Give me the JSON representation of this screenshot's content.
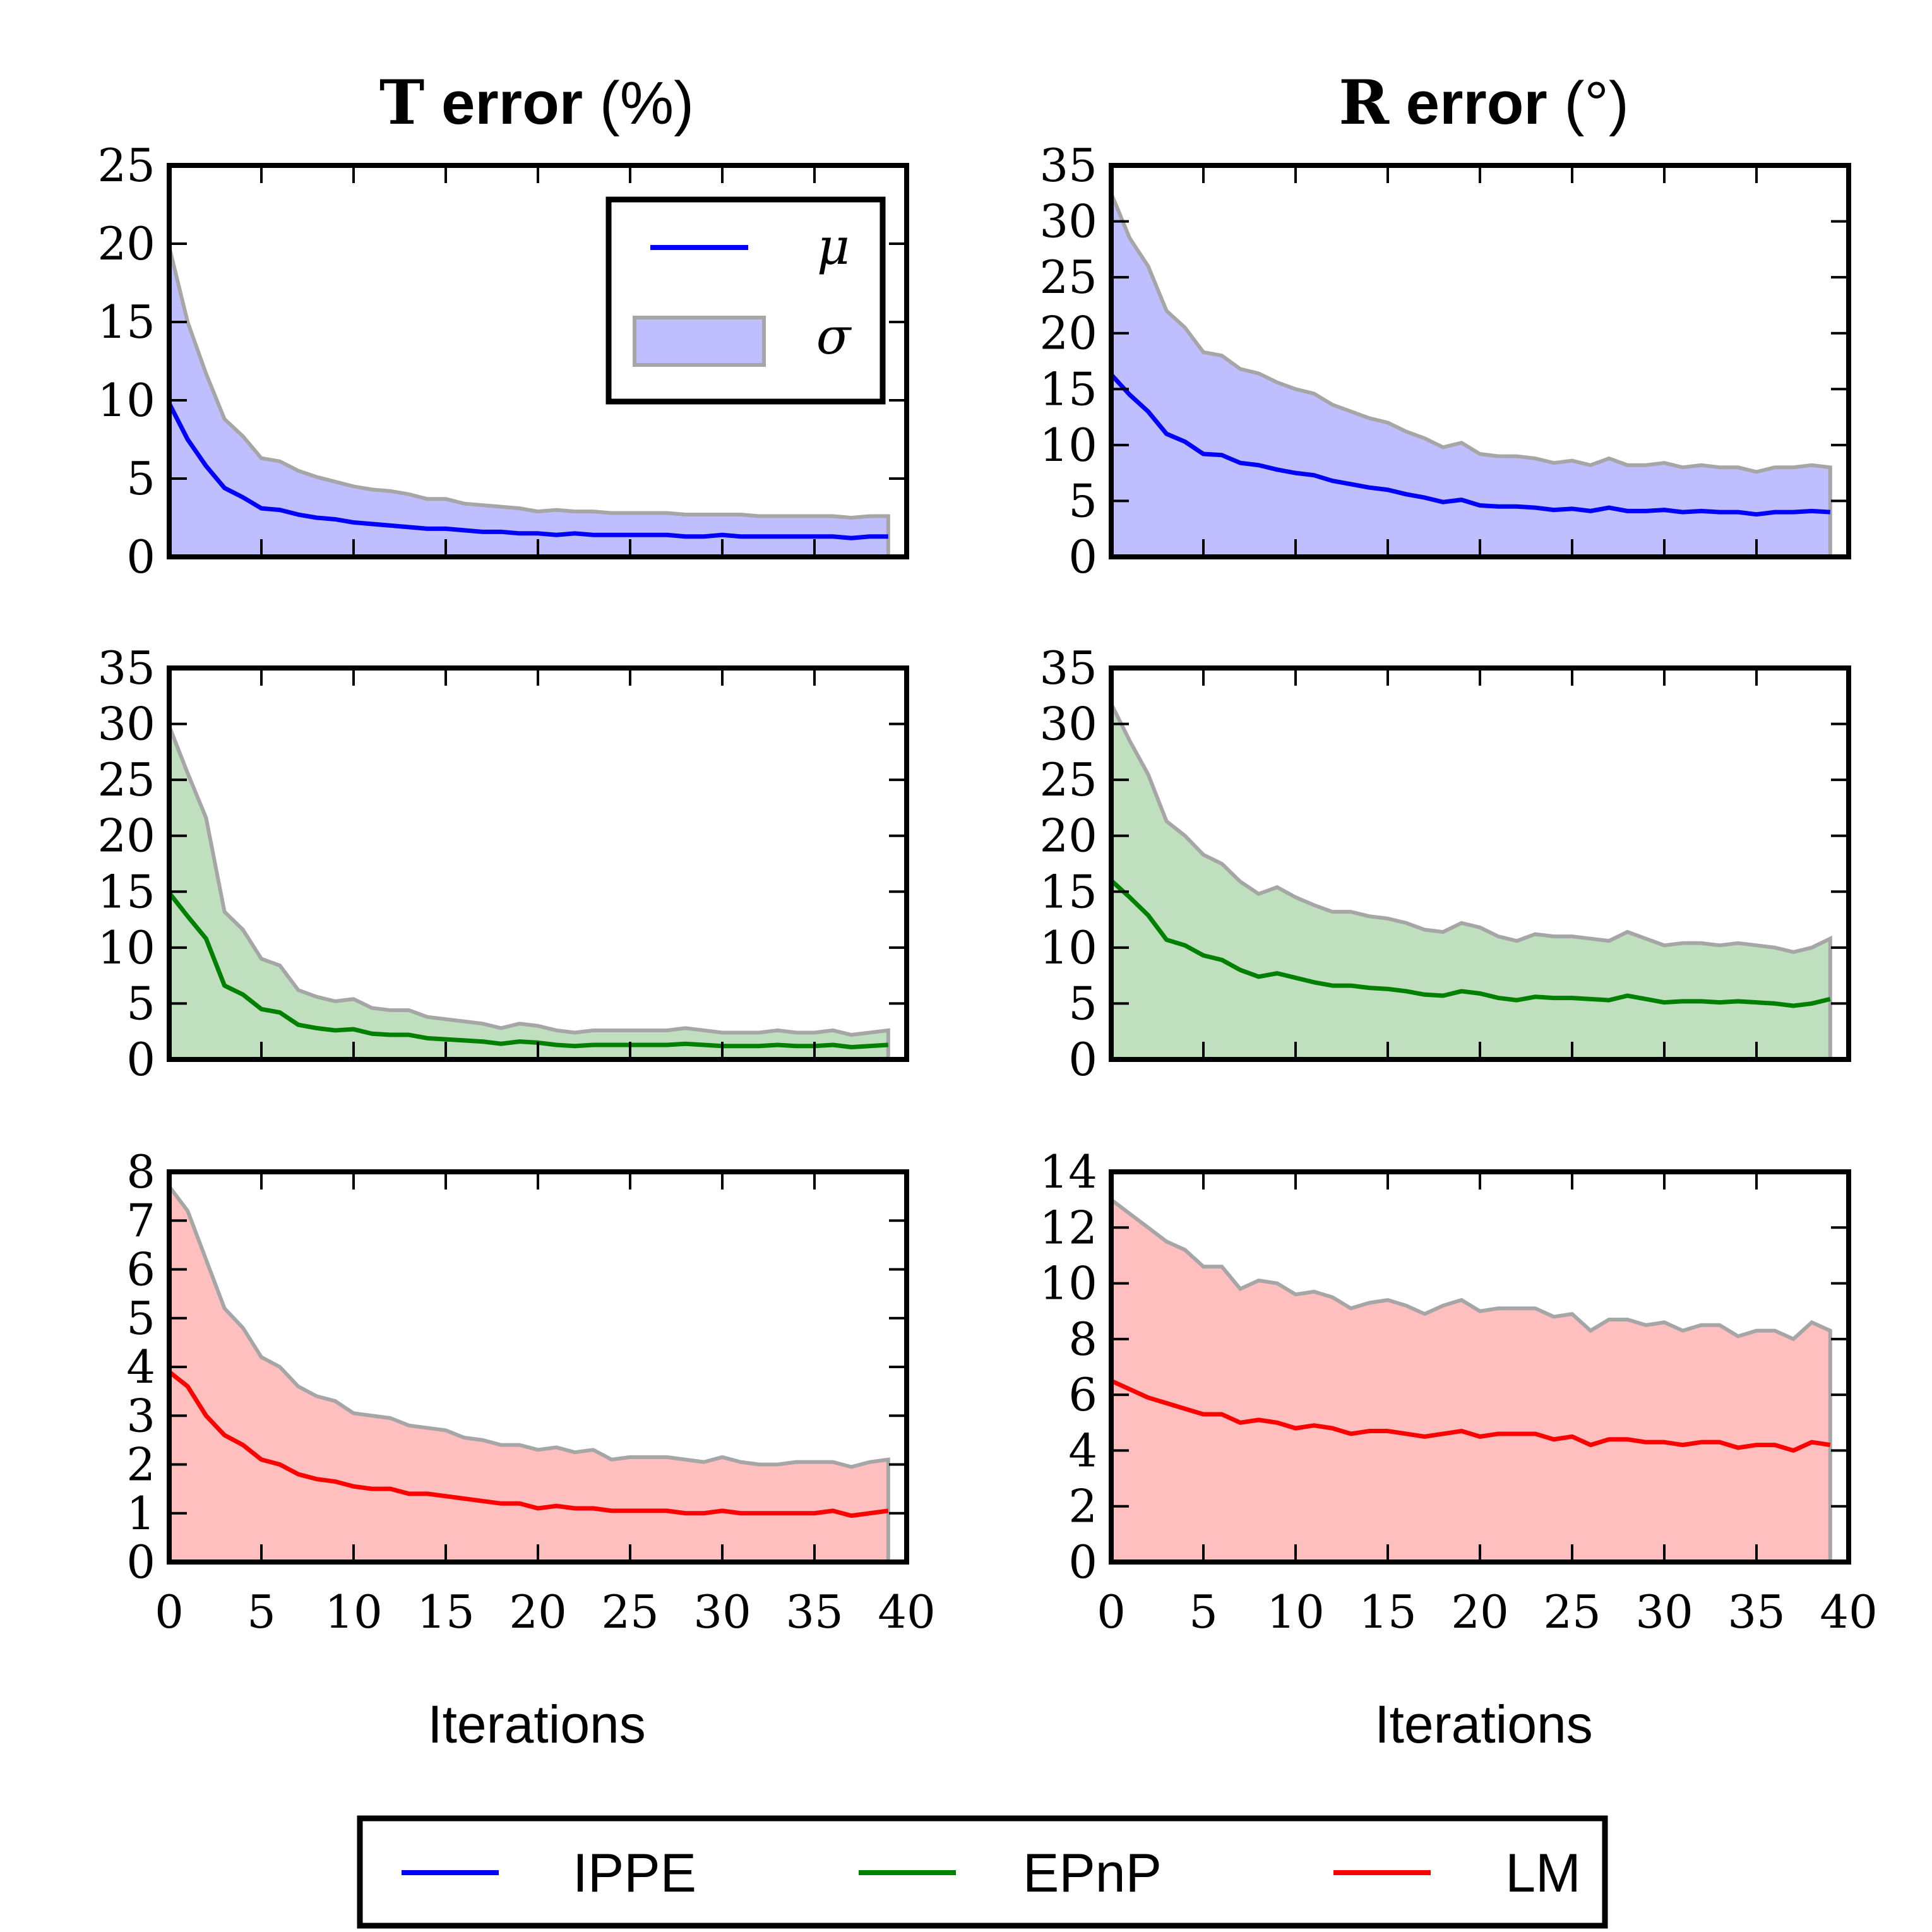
{
  "titles": {
    "t_error": {
      "symbol": "T",
      "word": " error",
      "unit": " (%)"
    },
    "r_error": {
      "symbol": "R",
      "word": " error",
      "unit": " (°)"
    }
  },
  "xlabel": "Iterations",
  "inner_legend": {
    "mean": "μ",
    "std": "σ"
  },
  "legend": [
    {
      "name": "IPPE",
      "color": "#0000ff"
    },
    {
      "name": "EPnP",
      "color": "#008000"
    },
    {
      "name": "LM",
      "color": "#ff0000"
    }
  ],
  "colors": {
    "IPPE": "#0000ff",
    "IPPE_fill": "#bfbfff",
    "EPnP": "#008000",
    "EPnP_fill": "#bfdfbf",
    "LM": "#ff0000",
    "LM_fill": "#ffbfbf",
    "band_edge": "#a6a6a6"
  },
  "chart_data": [
    {
      "type": "area",
      "panel": "IPPE T error",
      "method": "IPPE",
      "x": [
        0,
        1,
        2,
        3,
        4,
        5,
        6,
        7,
        8,
        9,
        10,
        11,
        12,
        13,
        14,
        15,
        16,
        17,
        18,
        19,
        20,
        21,
        22,
        23,
        24,
        25,
        26,
        27,
        28,
        29,
        30,
        31,
        32,
        33,
        34,
        35,
        36,
        37,
        38,
        39
      ],
      "mean": [
        9.8,
        7.5,
        5.8,
        4.4,
        3.8,
        3.1,
        3.0,
        2.7,
        2.5,
        2.4,
        2.2,
        2.1,
        2.0,
        1.9,
        1.8,
        1.8,
        1.7,
        1.6,
        1.6,
        1.5,
        1.5,
        1.4,
        1.5,
        1.4,
        1.4,
        1.4,
        1.4,
        1.4,
        1.3,
        1.3,
        1.4,
        1.3,
        1.3,
        1.3,
        1.3,
        1.3,
        1.3,
        1.2,
        1.3,
        1.3
      ],
      "upper": [
        19.8,
        15.0,
        11.7,
        8.8,
        7.7,
        6.3,
        6.1,
        5.5,
        5.1,
        4.8,
        4.5,
        4.3,
        4.2,
        4.0,
        3.7,
        3.7,
        3.4,
        3.3,
        3.2,
        3.1,
        2.9,
        3.0,
        2.9,
        2.9,
        2.8,
        2.8,
        2.8,
        2.8,
        2.7,
        2.7,
        2.7,
        2.7,
        2.6,
        2.6,
        2.6,
        2.6,
        2.6,
        2.5,
        2.6,
        2.6
      ],
      "xlim": [
        0,
        40
      ],
      "ylim": [
        0,
        25
      ],
      "yticks": [
        0,
        5,
        10,
        15,
        20,
        25
      ],
      "xticks": [
        0,
        5,
        10,
        15,
        20,
        25,
        30,
        35,
        40
      ],
      "show_xticklabels": false
    },
    {
      "type": "area",
      "panel": "IPPE R error",
      "method": "IPPE",
      "x": [
        0,
        1,
        2,
        3,
        4,
        5,
        6,
        7,
        8,
        9,
        10,
        11,
        12,
        13,
        14,
        15,
        16,
        17,
        18,
        19,
        20,
        21,
        22,
        23,
        24,
        25,
        26,
        27,
        28,
        29,
        30,
        31,
        32,
        33,
        34,
        35,
        36,
        37,
        38,
        39
      ],
      "mean": [
        16.3,
        14.5,
        13.0,
        11.0,
        10.3,
        9.2,
        9.1,
        8.4,
        8.2,
        7.8,
        7.5,
        7.3,
        6.8,
        6.5,
        6.2,
        6.0,
        5.6,
        5.3,
        4.9,
        5.1,
        4.6,
        4.5,
        4.5,
        4.4,
        4.2,
        4.3,
        4.1,
        4.4,
        4.1,
        4.1,
        4.2,
        4.0,
        4.1,
        4.0,
        4.0,
        3.8,
        4.0,
        4.0,
        4.1,
        4.0
      ],
      "upper": [
        32.5,
        28.5,
        26.0,
        22.0,
        20.5,
        18.3,
        18.0,
        16.8,
        16.4,
        15.6,
        15.0,
        14.6,
        13.6,
        13.0,
        12.4,
        12.0,
        11.2,
        10.6,
        9.8,
        10.2,
        9.2,
        9.0,
        9.0,
        8.8,
        8.4,
        8.6,
        8.2,
        8.8,
        8.2,
        8.2,
        8.4,
        8.0,
        8.2,
        8.0,
        8.0,
        7.6,
        8.0,
        8.0,
        8.2,
        8.0
      ],
      "xlim": [
        0,
        40
      ],
      "ylim": [
        0,
        35
      ],
      "yticks": [
        0,
        5,
        10,
        15,
        20,
        25,
        30,
        35
      ],
      "xticks": [
        0,
        5,
        10,
        15,
        20,
        25,
        30,
        35,
        40
      ],
      "show_xticklabels": false
    },
    {
      "type": "area",
      "panel": "EPnP T error",
      "method": "EPnP",
      "x": [
        0,
        1,
        2,
        3,
        4,
        5,
        6,
        7,
        8,
        9,
        10,
        11,
        12,
        13,
        14,
        15,
        16,
        17,
        18,
        19,
        20,
        21,
        22,
        23,
        24,
        25,
        26,
        27,
        28,
        29,
        30,
        31,
        32,
        33,
        34,
        35,
        36,
        37,
        38,
        39
      ],
      "mean": [
        14.9,
        12.8,
        10.8,
        6.6,
        5.8,
        4.5,
        4.2,
        3.1,
        2.8,
        2.6,
        2.7,
        2.3,
        2.2,
        2.2,
        1.9,
        1.8,
        1.7,
        1.6,
        1.4,
        1.6,
        1.5,
        1.3,
        1.2,
        1.3,
        1.3,
        1.3,
        1.3,
        1.3,
        1.4,
        1.3,
        1.2,
        1.2,
        1.2,
        1.3,
        1.2,
        1.2,
        1.3,
        1.1,
        1.2,
        1.3
      ],
      "upper": [
        29.8,
        25.6,
        21.6,
        13.2,
        11.6,
        9.0,
        8.4,
        6.2,
        5.6,
        5.2,
        5.4,
        4.6,
        4.4,
        4.4,
        3.8,
        3.6,
        3.4,
        3.2,
        2.8,
        3.2,
        3.0,
        2.6,
        2.4,
        2.6,
        2.6,
        2.6,
        2.6,
        2.6,
        2.8,
        2.6,
        2.4,
        2.4,
        2.4,
        2.6,
        2.4,
        2.4,
        2.6,
        2.2,
        2.4,
        2.6
      ],
      "xlim": [
        0,
        40
      ],
      "ylim": [
        0,
        35
      ],
      "yticks": [
        0,
        5,
        10,
        15,
        20,
        25,
        30,
        35
      ],
      "xticks": [
        0,
        5,
        10,
        15,
        20,
        25,
        30,
        35,
        40
      ],
      "show_xticklabels": false
    },
    {
      "type": "area",
      "panel": "EPnP R error",
      "method": "EPnP",
      "x": [
        0,
        1,
        2,
        3,
        4,
        5,
        6,
        7,
        8,
        9,
        10,
        11,
        12,
        13,
        14,
        15,
        16,
        17,
        18,
        19,
        20,
        21,
        22,
        23,
        24,
        25,
        26,
        27,
        28,
        29,
        30,
        31,
        32,
        33,
        34,
        35,
        36,
        37,
        38,
        39
      ],
      "mean": [
        16.0,
        14.5,
        12.9,
        10.7,
        10.2,
        9.3,
        8.9,
        8.0,
        7.4,
        7.7,
        7.3,
        6.9,
        6.6,
        6.6,
        6.4,
        6.3,
        6.1,
        5.8,
        5.7,
        6.1,
        5.9,
        5.5,
        5.3,
        5.6,
        5.5,
        5.5,
        5.4,
        5.3,
        5.7,
        5.4,
        5.1,
        5.2,
        5.2,
        5.1,
        5.2,
        5.1,
        5.0,
        4.8,
        5.0,
        5.4
      ],
      "upper": [
        31.8,
        28.5,
        25.5,
        21.3,
        20.0,
        18.3,
        17.5,
        15.9,
        14.8,
        15.4,
        14.5,
        13.8,
        13.2,
        13.2,
        12.8,
        12.6,
        12.2,
        11.6,
        11.4,
        12.2,
        11.8,
        11.0,
        10.6,
        11.2,
        11.0,
        11.0,
        10.8,
        10.6,
        11.4,
        10.8,
        10.2,
        10.4,
        10.4,
        10.2,
        10.4,
        10.2,
        10.0,
        9.6,
        10.0,
        10.8
      ],
      "xlim": [
        0,
        40
      ],
      "ylim": [
        0,
        35
      ],
      "yticks": [
        0,
        5,
        10,
        15,
        20,
        25,
        30,
        35
      ],
      "xticks": [
        0,
        5,
        10,
        15,
        20,
        25,
        30,
        35,
        40
      ],
      "show_xticklabels": false
    },
    {
      "type": "area",
      "panel": "LM T error",
      "method": "LM",
      "x": [
        0,
        1,
        2,
        3,
        4,
        5,
        6,
        7,
        8,
        9,
        10,
        11,
        12,
        13,
        14,
        15,
        16,
        17,
        18,
        19,
        20,
        21,
        22,
        23,
        24,
        25,
        26,
        27,
        28,
        29,
        30,
        31,
        32,
        33,
        34,
        35,
        36,
        37,
        38,
        39
      ],
      "mean": [
        3.9,
        3.6,
        3.0,
        2.6,
        2.4,
        2.1,
        2.0,
        1.8,
        1.7,
        1.65,
        1.55,
        1.5,
        1.5,
        1.4,
        1.4,
        1.35,
        1.3,
        1.25,
        1.2,
        1.2,
        1.1,
        1.15,
        1.1,
        1.1,
        1.05,
        1.05,
        1.05,
        1.05,
        1.0,
        1.0,
        1.05,
        1.0,
        1.0,
        1.0,
        1.0,
        1.0,
        1.05,
        0.95,
        1.0,
        1.05
      ],
      "upper": [
        7.7,
        7.2,
        6.2,
        5.2,
        4.8,
        4.2,
        4.0,
        3.6,
        3.4,
        3.3,
        3.05,
        3.0,
        2.95,
        2.8,
        2.75,
        2.7,
        2.55,
        2.5,
        2.4,
        2.4,
        2.3,
        2.35,
        2.25,
        2.3,
        2.1,
        2.15,
        2.15,
        2.15,
        2.1,
        2.05,
        2.15,
        2.05,
        2.0,
        2.0,
        2.05,
        2.05,
        2.05,
        1.95,
        2.05,
        2.1
      ],
      "xlim": [
        0,
        40
      ],
      "ylim": [
        0,
        8
      ],
      "yticks": [
        0,
        1,
        2,
        3,
        4,
        5,
        6,
        7,
        8
      ],
      "xticks": [
        0,
        5,
        10,
        15,
        20,
        25,
        30,
        35,
        40
      ],
      "show_xticklabels": true
    },
    {
      "type": "area",
      "panel": "LM R error",
      "method": "LM",
      "x": [
        0,
        1,
        2,
        3,
        4,
        5,
        6,
        7,
        8,
        9,
        10,
        11,
        12,
        13,
        14,
        15,
        16,
        17,
        18,
        19,
        20,
        21,
        22,
        23,
        24,
        25,
        26,
        27,
        28,
        29,
        30,
        31,
        32,
        33,
        34,
        35,
        36,
        37,
        38,
        39
      ],
      "mean": [
        6.5,
        6.2,
        5.9,
        5.7,
        5.5,
        5.3,
        5.3,
        5.0,
        5.1,
        5.0,
        4.8,
        4.9,
        4.8,
        4.6,
        4.7,
        4.7,
        4.6,
        4.5,
        4.6,
        4.7,
        4.5,
        4.6,
        4.6,
        4.6,
        4.4,
        4.5,
        4.2,
        4.4,
        4.4,
        4.3,
        4.3,
        4.2,
        4.3,
        4.3,
        4.1,
        4.2,
        4.2,
        4.0,
        4.3,
        4.2
      ],
      "upper": [
        13.0,
        12.5,
        12.0,
        11.5,
        11.2,
        10.6,
        10.6,
        9.8,
        10.1,
        10.0,
        9.6,
        9.7,
        9.5,
        9.1,
        9.3,
        9.4,
        9.2,
        8.9,
        9.2,
        9.4,
        9.0,
        9.1,
        9.1,
        9.1,
        8.8,
        8.9,
        8.3,
        8.7,
        8.7,
        8.5,
        8.6,
        8.3,
        8.5,
        8.5,
        8.1,
        8.3,
        8.3,
        8.0,
        8.6,
        8.3
      ],
      "xlim": [
        0,
        40
      ],
      "ylim": [
        0,
        14
      ],
      "yticks": [
        0,
        2,
        4,
        6,
        8,
        10,
        12,
        14
      ],
      "xticks": [
        0,
        5,
        10,
        15,
        20,
        25,
        30,
        35,
        40
      ],
      "show_xticklabels": true
    }
  ]
}
